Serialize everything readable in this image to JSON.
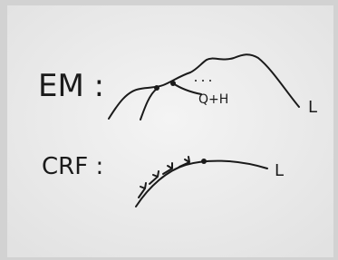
{
  "em": {
    "label": "EM :",
    "annotation": "Q+H",
    "end_label": "L"
  },
  "crf": {
    "label": "CRF :",
    "end_label": "L"
  }
}
